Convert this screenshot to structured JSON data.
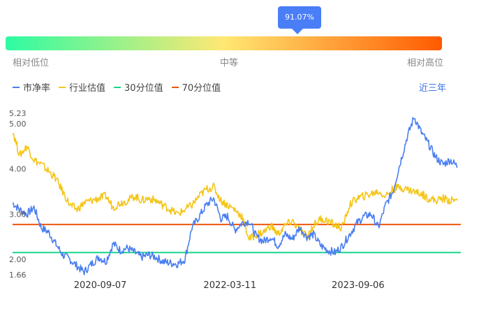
{
  "gauge": {
    "percentile_label": "91.07%",
    "percentile": 0.9107,
    "low_label": "相对低位",
    "mid_label": "中等",
    "high_label": "相对高位",
    "colors": [
      "#2efba3",
      "#ffe873",
      "#ff5a00"
    ]
  },
  "legend": [
    {
      "name": "市净率",
      "color": "#4a7ef0"
    },
    {
      "name": "行业估值",
      "color": "#f5c518"
    },
    {
      "name": "30分位值",
      "color": "#18d68a"
    },
    {
      "name": "70分位值",
      "color": "#f0560c"
    }
  ],
  "period_label": "近三年",
  "chart_data": {
    "type": "line",
    "yticks": [
      "5.23",
      "5.00",
      "4.00",
      "3.00",
      "2.00",
      "1.66"
    ],
    "ytick_values": [
      5.23,
      5.0,
      4.0,
      3.0,
      2.0,
      1.66
    ],
    "ylim": [
      1.66,
      5.23
    ],
    "xticks": [
      "2020-09-07",
      "2022-03-11",
      "2023-09-06"
    ],
    "x_range": [
      "2019-09-01",
      "2024-11-15"
    ],
    "reference_lines": [
      {
        "name": "30分位值",
        "value": 2.15,
        "color": "#18d68a"
      },
      {
        "name": "70分位值",
        "value": 2.77,
        "color": "#f0560c"
      }
    ],
    "series": [
      {
        "name": "市净率",
        "color": "#4a7ef0",
        "points": [
          [
            "2019-09-01",
            3.25
          ],
          [
            "2019-10-01",
            3.1
          ],
          [
            "2019-11-01",
            3.0
          ],
          [
            "2019-12-01",
            3.15
          ],
          [
            "2020-01-01",
            2.7
          ],
          [
            "2020-02-01",
            2.6
          ],
          [
            "2020-03-01",
            2.35
          ],
          [
            "2020-04-01",
            2.1
          ],
          [
            "2020-05-01",
            2.0
          ],
          [
            "2020-06-01",
            1.85
          ],
          [
            "2020-07-01",
            1.72
          ],
          [
            "2020-08-01",
            1.9
          ],
          [
            "2020-09-01",
            2.05
          ],
          [
            "2020-10-01",
            1.95
          ],
          [
            "2020-11-01",
            2.35
          ],
          [
            "2020-12-01",
            2.2
          ],
          [
            "2021-01-01",
            2.25
          ],
          [
            "2021-02-01",
            2.15
          ],
          [
            "2021-03-01",
            2.05
          ],
          [
            "2021-04-01",
            2.1
          ],
          [
            "2021-05-01",
            2.05
          ],
          [
            "2021-06-01",
            1.95
          ],
          [
            "2021-07-01",
            1.92
          ],
          [
            "2021-08-01",
            1.9
          ],
          [
            "2021-09-01",
            2.0
          ],
          [
            "2021-10-01",
            2.7
          ],
          [
            "2021-11-01",
            2.95
          ],
          [
            "2021-12-01",
            3.2
          ],
          [
            "2022-01-01",
            3.35
          ],
          [
            "2022-02-01",
            2.9
          ],
          [
            "2022-03-01",
            2.95
          ],
          [
            "2022-04-01",
            2.65
          ],
          [
            "2022-05-01",
            2.8
          ],
          [
            "2022-06-01",
            2.85
          ],
          [
            "2022-07-01",
            2.5
          ],
          [
            "2022-08-01",
            2.4
          ],
          [
            "2022-09-01",
            2.5
          ],
          [
            "2022-10-01",
            2.3
          ],
          [
            "2022-11-01",
            2.55
          ],
          [
            "2022-12-01",
            2.45
          ],
          [
            "2023-01-01",
            2.7
          ],
          [
            "2023-02-01",
            2.5
          ],
          [
            "2023-03-01",
            2.55
          ],
          [
            "2023-04-01",
            2.3
          ],
          [
            "2023-05-01",
            2.2
          ],
          [
            "2023-06-01",
            2.15
          ],
          [
            "2023-07-01",
            2.3
          ],
          [
            "2023-08-01",
            2.55
          ],
          [
            "2023-09-01",
            2.8
          ],
          [
            "2023-10-01",
            2.95
          ],
          [
            "2023-11-01",
            3.0
          ],
          [
            "2023-12-01",
            2.7
          ],
          [
            "2024-01-01",
            3.2
          ],
          [
            "2024-02-01",
            3.5
          ],
          [
            "2024-03-01",
            4.1
          ],
          [
            "2024-04-01",
            4.7
          ],
          [
            "2024-05-01",
            5.15
          ],
          [
            "2024-06-01",
            4.8
          ],
          [
            "2024-07-01",
            4.55
          ],
          [
            "2024-08-01",
            4.25
          ],
          [
            "2024-09-01",
            4.1
          ],
          [
            "2024-10-01",
            4.2
          ],
          [
            "2024-11-01",
            4.05
          ]
        ]
      },
      {
        "name": "行业估值",
        "color": "#f5c518",
        "points": [
          [
            "2019-09-01",
            4.85
          ],
          [
            "2019-10-01",
            4.3
          ],
          [
            "2019-11-01",
            4.5
          ],
          [
            "2019-12-01",
            4.2
          ],
          [
            "2020-01-01",
            4.1
          ],
          [
            "2020-02-01",
            3.95
          ],
          [
            "2020-03-01",
            3.8
          ],
          [
            "2020-04-01",
            3.5
          ],
          [
            "2020-05-01",
            3.2
          ],
          [
            "2020-06-01",
            3.1
          ],
          [
            "2020-07-01",
            3.25
          ],
          [
            "2020-08-01",
            3.3
          ],
          [
            "2020-09-01",
            3.35
          ],
          [
            "2020-10-01",
            3.4
          ],
          [
            "2020-11-01",
            3.15
          ],
          [
            "2020-12-01",
            3.25
          ],
          [
            "2021-01-01",
            3.3
          ],
          [
            "2021-02-01",
            3.4
          ],
          [
            "2021-03-01",
            3.3
          ],
          [
            "2021-04-01",
            3.35
          ],
          [
            "2021-05-01",
            3.3
          ],
          [
            "2021-06-01",
            3.2
          ],
          [
            "2021-07-01",
            3.1
          ],
          [
            "2021-08-01",
            3.0
          ],
          [
            "2021-09-01",
            3.1
          ],
          [
            "2021-10-01",
            3.2
          ],
          [
            "2021-11-01",
            3.4
          ],
          [
            "2021-12-01",
            3.55
          ],
          [
            "2022-01-01",
            3.6
          ],
          [
            "2022-02-01",
            3.3
          ],
          [
            "2022-03-01",
            3.2
          ],
          [
            "2022-04-01",
            3.1
          ],
          [
            "2022-05-01",
            2.95
          ],
          [
            "2022-06-01",
            2.45
          ],
          [
            "2022-07-01",
            2.55
          ],
          [
            "2022-08-01",
            2.6
          ],
          [
            "2022-09-01",
            2.75
          ],
          [
            "2022-10-01",
            2.55
          ],
          [
            "2022-11-01",
            2.75
          ],
          [
            "2022-12-01",
            2.85
          ],
          [
            "2023-01-01",
            2.65
          ],
          [
            "2023-02-01",
            2.5
          ],
          [
            "2023-03-01",
            2.75
          ],
          [
            "2023-04-01",
            2.9
          ],
          [
            "2023-05-01",
            2.85
          ],
          [
            "2023-06-01",
            2.75
          ],
          [
            "2023-07-01",
            2.7
          ],
          [
            "2023-08-01",
            3.2
          ],
          [
            "2023-09-01",
            3.35
          ],
          [
            "2023-10-01",
            3.4
          ],
          [
            "2023-11-01",
            3.45
          ],
          [
            "2023-12-01",
            3.5
          ],
          [
            "2024-01-01",
            3.4
          ],
          [
            "2024-02-01",
            3.55
          ],
          [
            "2024-03-01",
            3.6
          ],
          [
            "2024-04-01",
            3.55
          ],
          [
            "2024-05-01",
            3.5
          ],
          [
            "2024-06-01",
            3.45
          ],
          [
            "2024-07-01",
            3.35
          ],
          [
            "2024-08-01",
            3.3
          ],
          [
            "2024-09-01",
            3.35
          ],
          [
            "2024-10-01",
            3.3
          ],
          [
            "2024-11-01",
            3.3
          ]
        ]
      }
    ]
  }
}
